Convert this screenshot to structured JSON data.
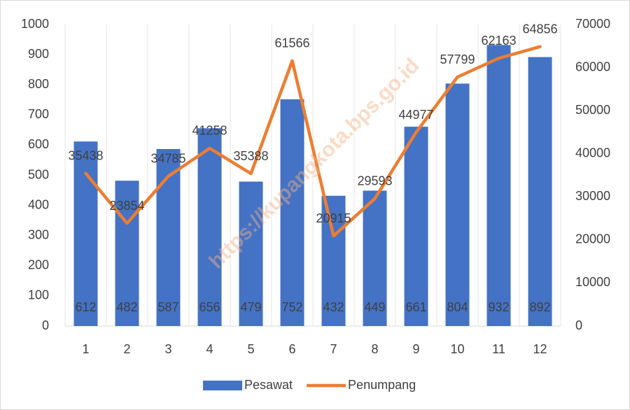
{
  "chart_data": {
    "type": "bar-line",
    "categories": [
      "1",
      "2",
      "3",
      "4",
      "5",
      "6",
      "7",
      "8",
      "9",
      "10",
      "11",
      "12"
    ],
    "series": [
      {
        "name": "Pesawat",
        "type": "bar",
        "axis": "y",
        "color": "#4472c4",
        "values": [
          612,
          482,
          587,
          656,
          479,
          752,
          432,
          449,
          661,
          804,
          932,
          892
        ]
      },
      {
        "name": "Penumpang",
        "type": "line",
        "axis": "y2",
        "color": "#ed7d31",
        "values": [
          35438,
          23854,
          34785,
          41258,
          35388,
          61566,
          20915,
          29593,
          44977,
          57799,
          62163,
          64856
        ]
      }
    ],
    "ylim": [
      0,
      1000
    ],
    "yticks": [
      0,
      100,
      200,
      300,
      400,
      500,
      600,
      700,
      800,
      900,
      1000
    ],
    "y2lim": [
      0,
      70000
    ],
    "y2ticks": [
      0,
      10000,
      20000,
      30000,
      40000,
      50000,
      60000,
      70000
    ],
    "legend": "bottom",
    "watermark": "https://kupangkota.bps.go.id"
  }
}
